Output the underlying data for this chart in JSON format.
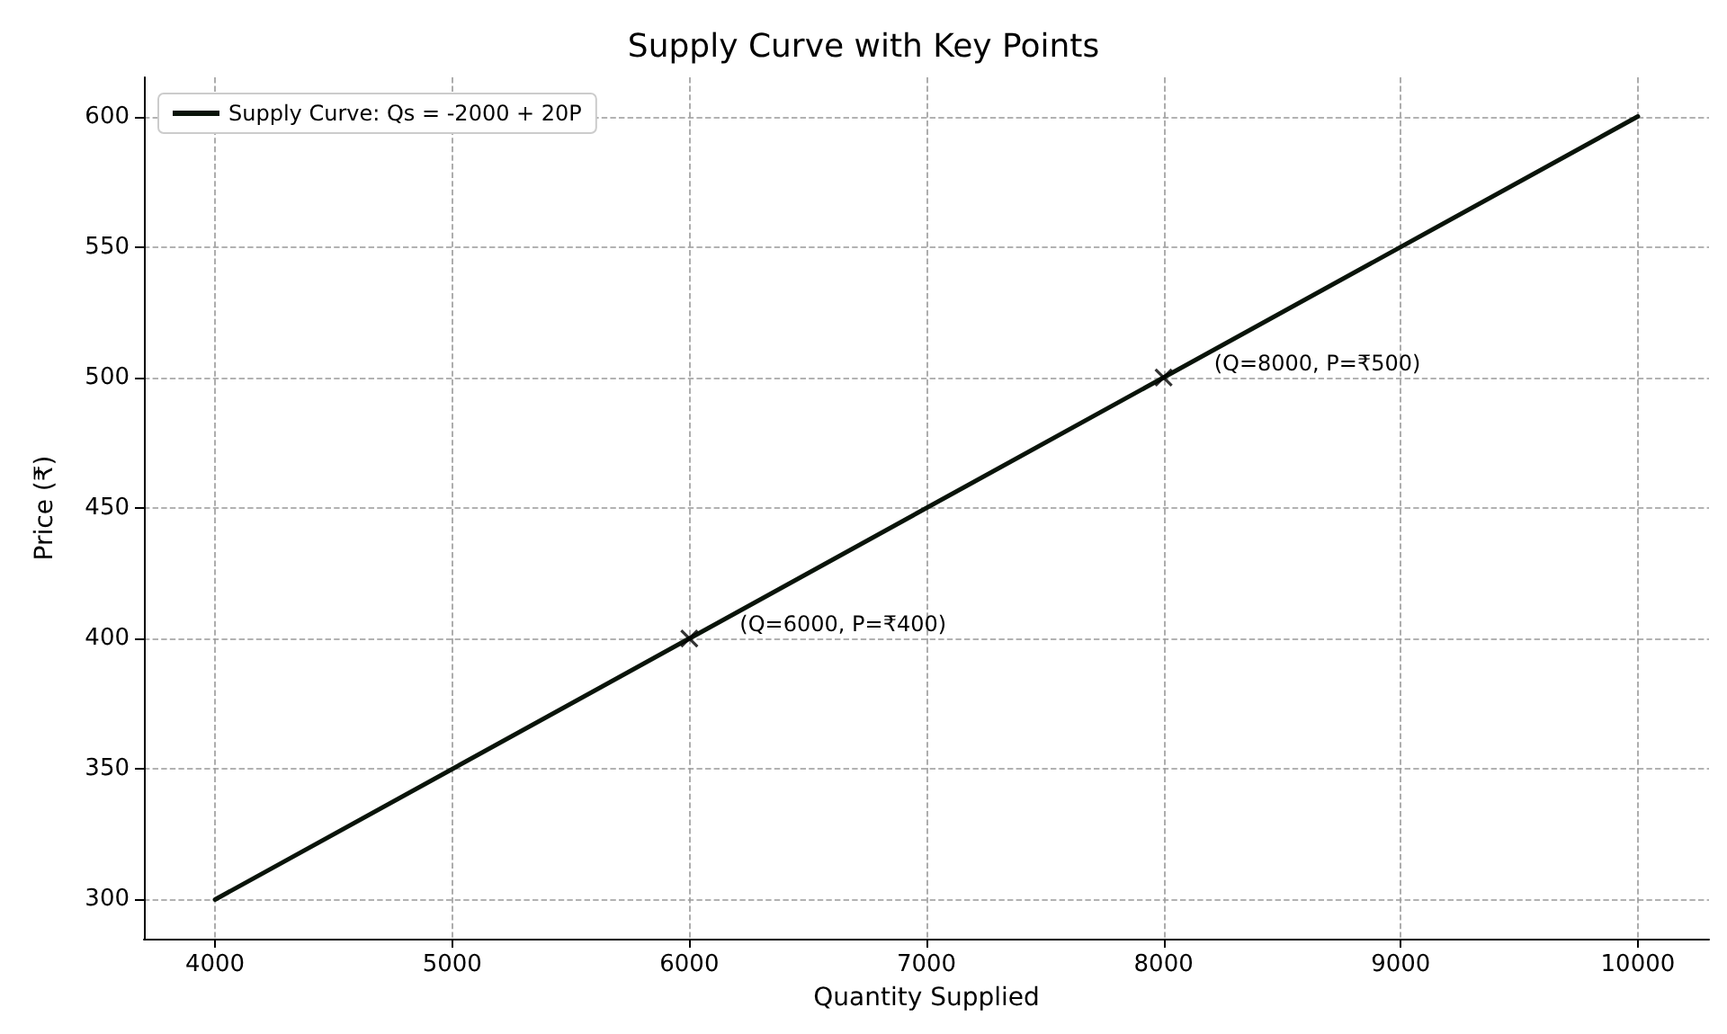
{
  "chart_data": {
    "type": "line",
    "title": "Supply Curve with Key Points",
    "xlabel": "Quantity Supplied",
    "ylabel": "Price (₹)",
    "series": [
      {
        "name": "Supply Curve: Qs = -2000 + 20P",
        "color": "#0a140a",
        "x": [
          4000,
          10000
        ],
        "values": [
          300,
          600
        ],
        "marker": "none",
        "line_style": "solid"
      },
      {
        "type": "scatter",
        "color": "#000000",
        "x": [
          6000,
          8000
        ],
        "values": [
          400,
          500
        ],
        "marker": "cross"
      }
    ],
    "annotations": [
      {
        "text": "(Q=6000, P=₹400)",
        "x": 6000,
        "y": 400
      },
      {
        "text": "(Q=8000, P=₹500)",
        "x": 8000,
        "y": 500
      }
    ],
    "xlim": [
      3700,
      10300
    ],
    "xticks": [
      4000,
      5000,
      6000,
      7000,
      8000,
      9000,
      10000
    ],
    "ylim": [
      285,
      615
    ],
    "yticks": [
      300,
      350,
      400,
      450,
      500,
      550,
      600
    ],
    "grid": true,
    "legend": "top left"
  }
}
